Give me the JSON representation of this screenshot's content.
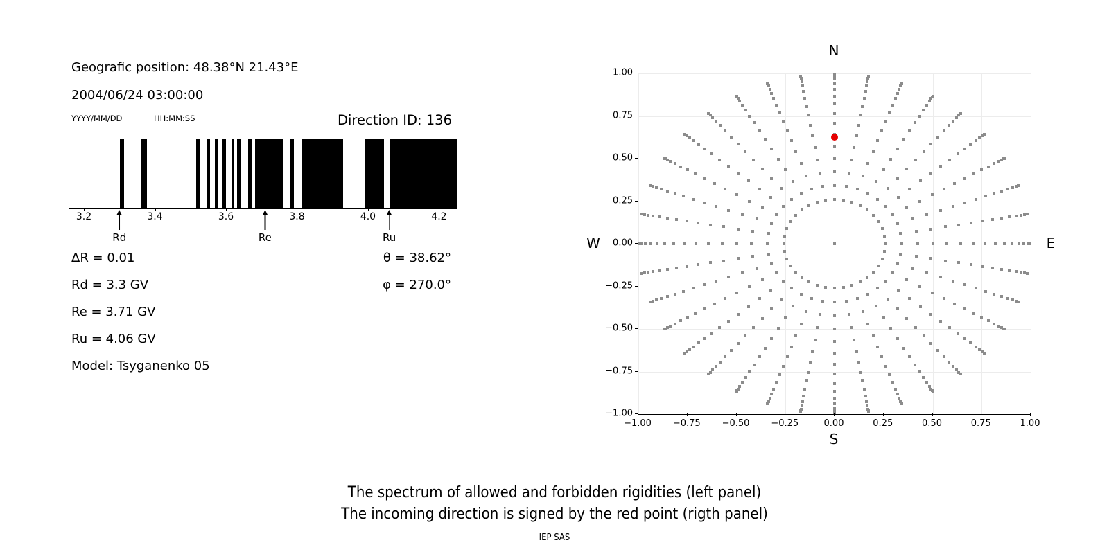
{
  "header": {
    "position_line": "Geografic position: 48.38°N 21.43°E",
    "datetime_line": "2004/06/24 03:00:00",
    "date_format_label": "YYYY/MM/DD",
    "time_format_label": "HH:MM:SS",
    "direction_id_line": "Direction ID: 136"
  },
  "params": {
    "delta_r": "ΔR = 0.01",
    "rd": "Rd = 3.3 GV",
    "re": "Re = 3.71 GV",
    "ru": "Ru = 4.06 GV",
    "model": "Model: Tsyganenko 05",
    "theta": "θ = 38.62°",
    "phi": "φ = 270.0°"
  },
  "captions": {
    "line1": "The spectrum of allowed and forbidden rigidities (left panel)",
    "line2": "The incoming direction is signed by the red point (rigth panel)",
    "credit": "IEP SAS"
  },
  "chart_data": [
    {
      "type": "bar",
      "subtype": "rigidity-spectrum-barcode",
      "description": "Allowed (black) and forbidden (white) rigidity bands versus rigidity in GV",
      "xlim": [
        3.157,
        4.246
      ],
      "xticks": [
        3.2,
        3.4,
        3.6,
        3.8,
        4.0,
        4.2
      ],
      "xtick_labels": [
        "3.2",
        "3.4",
        "3.6",
        "3.8",
        "4.0",
        "4.2"
      ],
      "allowed_color": "#000000",
      "forbidden_color": "#ffffff",
      "allowed_bands": [
        [
          3.3,
          3.312
        ],
        [
          3.36,
          3.375
        ],
        [
          3.514,
          3.523
        ],
        [
          3.545,
          3.553
        ],
        [
          3.566,
          3.577
        ],
        [
          3.588,
          3.599
        ],
        [
          3.613,
          3.621
        ],
        [
          3.63,
          3.639
        ],
        [
          3.66,
          3.67
        ],
        [
          3.68,
          3.759
        ],
        [
          3.779,
          3.79
        ],
        [
          3.813,
          3.927
        ],
        [
          3.99,
          4.043
        ],
        [
          4.06,
          4.246
        ]
      ],
      "annotations": [
        {
          "label": "Rd",
          "value": 3.3
        },
        {
          "label": "Re",
          "value": 3.71
        },
        {
          "label": "Ru",
          "value": 4.06
        }
      ],
      "delta_r": 0.01,
      "units": "GV"
    },
    {
      "type": "scatter",
      "subtype": "incoming-direction-skymap",
      "xlim": [
        -1.0,
        1.0
      ],
      "ylim": [
        -1.0,
        1.0
      ],
      "xticks": [
        -1.0,
        -0.75,
        -0.5,
        -0.25,
        0.0,
        0.25,
        0.5,
        0.75,
        1.0
      ],
      "xtick_labels": [
        "−1.00",
        "−0.75",
        "−0.50",
        "−0.25",
        "0.00",
        "0.25",
        "0.50",
        "0.75",
        "1.00"
      ],
      "ytick_labels": [
        "1.00",
        "0.75",
        "0.50",
        "0.25",
        "0.00",
        "−0.25",
        "−0.50",
        "−0.75",
        "−1.00"
      ],
      "grid": true,
      "grid_color": "#ececec",
      "compass": {
        "top": "N",
        "bottom": "S",
        "left": "W",
        "right": "E"
      },
      "dot_color": "#8c8c8c",
      "direction_grid": {
        "azimuth_start_deg": 0,
        "azimuth_step_deg": 10,
        "azimuth_count": 36,
        "zenith_start_deg": 15,
        "zenith_step_deg": 5,
        "zenith_end_deg": 90,
        "radius_rule": "r = sin(zenith)",
        "center_dot": true
      },
      "red_point": {
        "x": 0.0,
        "y": 0.624,
        "color": "#e60000",
        "zenith_deg": 38.62,
        "azimuth_deg": 270.0
      }
    }
  ]
}
